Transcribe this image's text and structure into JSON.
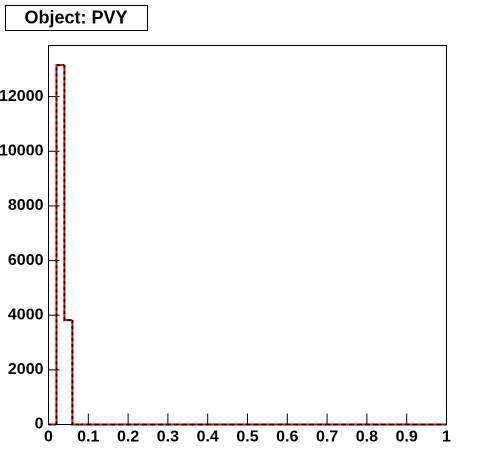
{
  "chart_data": {
    "type": "histogram",
    "title": "Object: PVY",
    "bins": [
      0,
      0.02,
      0.04,
      0.06,
      0.08,
      0.1,
      0.12,
      0.14,
      0.16,
      0.18,
      0.2,
      0.22,
      0.24,
      0.26,
      0.28,
      0.3,
      0.32,
      0.34,
      0.36,
      0.38,
      0.4,
      0.42,
      0.44,
      0.46,
      0.48,
      0.5,
      0.52,
      0.54,
      0.56,
      0.58,
      0.6,
      0.62,
      0.64,
      0.66,
      0.68,
      0.7,
      0.72,
      0.74,
      0.76,
      0.78,
      0.8,
      0.82,
      0.84,
      0.86,
      0.88,
      0.9,
      0.92,
      0.94,
      0.96,
      0.98,
      1
    ],
    "series": [
      {
        "color": "#ff0000",
        "values": [
          0,
          13150,
          3820,
          0,
          0,
          0,
          0,
          0,
          0,
          0,
          0,
          0,
          0,
          0,
          0,
          0,
          0,
          0,
          0,
          0,
          0,
          0,
          0,
          0,
          0,
          0,
          0,
          0,
          0,
          0,
          0,
          0,
          0,
          0,
          0,
          0,
          0,
          0,
          0,
          0,
          0,
          0,
          0,
          0,
          0,
          0,
          0,
          0,
          0,
          0
        ]
      },
      {
        "color": "#000000",
        "values": [
          0,
          13150,
          3820,
          0,
          0,
          0,
          0,
          0,
          0,
          0,
          0,
          0,
          0,
          0,
          0,
          0,
          0,
          0,
          0,
          0,
          0,
          0,
          0,
          0,
          0,
          0,
          0,
          0,
          0,
          0,
          0,
          0,
          0,
          0,
          0,
          0,
          0,
          0,
          0,
          0,
          0,
          0,
          0,
          0,
          0,
          0,
          0,
          0,
          0,
          0
        ]
      }
    ],
    "xlim": [
      0,
      1
    ],
    "xticks": [
      0,
      0.1,
      0.2,
      0.3,
      0.4,
      0.5,
      0.6,
      0.7,
      0.8,
      0.9,
      1
    ],
    "ylim": [
      0,
      13870
    ],
    "yticks": [
      0,
      2000,
      4000,
      6000,
      8000,
      10000,
      12000
    ]
  }
}
